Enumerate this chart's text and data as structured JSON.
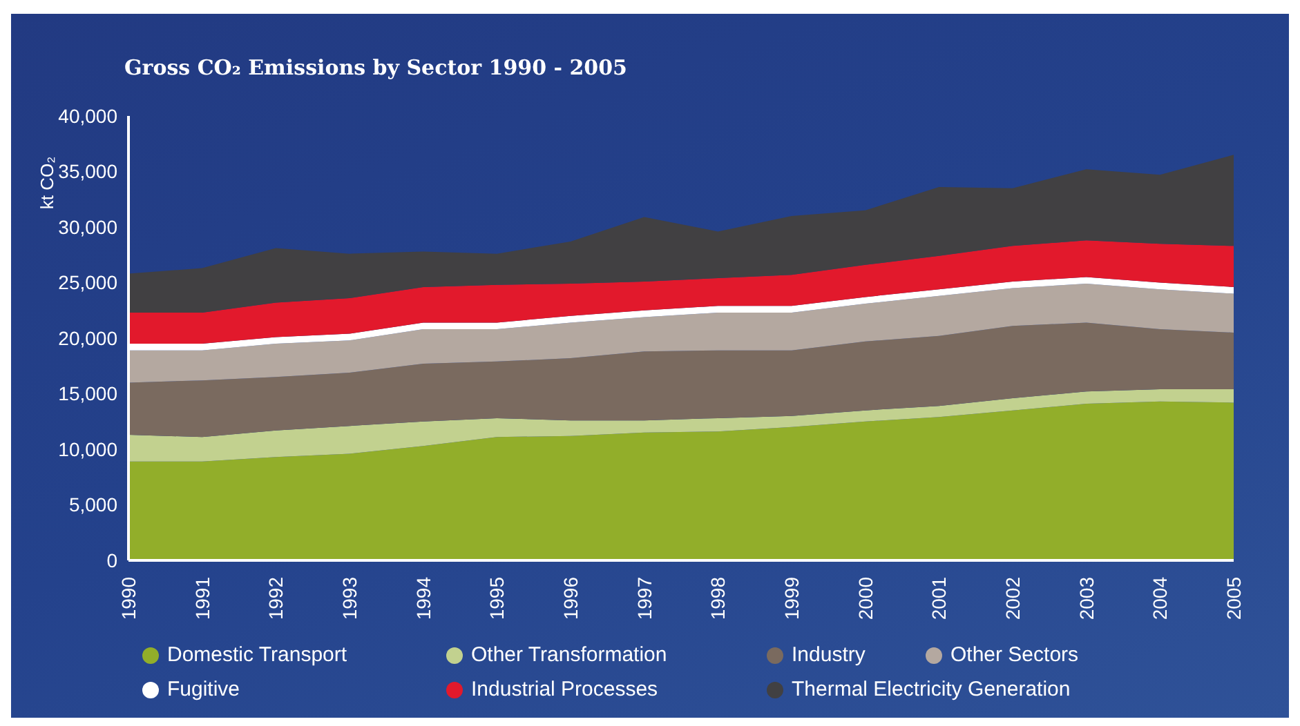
{
  "chart_data": {
    "type": "area",
    "stacked": true,
    "title": "Gross CO₂ Emissions by Sector 1990 - 2005",
    "ylabel": "kt CO₂",
    "categories": [
      "1990",
      "1991",
      "1992",
      "1993",
      "1994",
      "1995",
      "1996",
      "1997",
      "1998",
      "1999",
      "2000",
      "2001",
      "2002",
      "2003",
      "2004",
      "2005"
    ],
    "series": [
      {
        "name": "Domestic Transport",
        "color": "#92ae2a",
        "values": [
          8900,
          8900,
          9300,
          9600,
          10300,
          11100,
          11200,
          11500,
          11600,
          12000,
          12500,
          12900,
          13500,
          14100,
          14300,
          14200
        ]
      },
      {
        "name": "Other Transformation",
        "color": "#c2d18f",
        "values": [
          2400,
          2200,
          2400,
          2500,
          2200,
          1700,
          1400,
          1100,
          1200,
          1000,
          1000,
          1000,
          1100,
          1100,
          1100,
          1200
        ]
      },
      {
        "name": "Industry",
        "color": "#7a6a5f",
        "values": [
          4700,
          5100,
          4800,
          4800,
          5200,
          5100,
          5600,
          6200,
          6100,
          5900,
          6200,
          6300,
          6500,
          6200,
          5400,
          5100
        ]
      },
      {
        "name": "Other Sectors",
        "color": "#b4a8a0",
        "values": [
          2900,
          2700,
          3000,
          2900,
          3100,
          2900,
          3200,
          3100,
          3400,
          3400,
          3400,
          3600,
          3400,
          3500,
          3600,
          3500
        ]
      },
      {
        "name": "Fugitive",
        "color": "#ffffff",
        "values": [
          600,
          600,
          600,
          600,
          600,
          600,
          600,
          600,
          600,
          600,
          600,
          600,
          600,
          600,
          600,
          600
        ]
      },
      {
        "name": "Industrial Processes",
        "color": "#e2192c",
        "values": [
          2800,
          2800,
          3100,
          3200,
          3200,
          3400,
          2900,
          2600,
          2500,
          2800,
          2900,
          3000,
          3200,
          3300,
          3500,
          3700
        ]
      },
      {
        "name": "Thermal Electricity Generation",
        "color": "#414042",
        "values": [
          3500,
          4000,
          4900,
          4000,
          3200,
          2800,
          3800,
          5800,
          4200,
          5300,
          4900,
          6200,
          5200,
          6400,
          6200,
          8200
        ]
      }
    ],
    "ylim": [
      0,
      40000
    ],
    "yticks": [
      0,
      {
        "value": 5000,
        "label": "5,000"
      },
      {
        "value": 10000,
        "label": "10,000"
      },
      {
        "value": 15000,
        "label": "15,000"
      },
      {
        "value": 20000,
        "label": "20,000"
      },
      {
        "value": 25000,
        "label": "25,000"
      },
      {
        "value": 30000,
        "label": "30,000"
      },
      {
        "value": 35000,
        "label": "35,000"
      },
      {
        "value": 40000,
        "label": "40,000"
      }
    ],
    "legend": "bottom"
  }
}
